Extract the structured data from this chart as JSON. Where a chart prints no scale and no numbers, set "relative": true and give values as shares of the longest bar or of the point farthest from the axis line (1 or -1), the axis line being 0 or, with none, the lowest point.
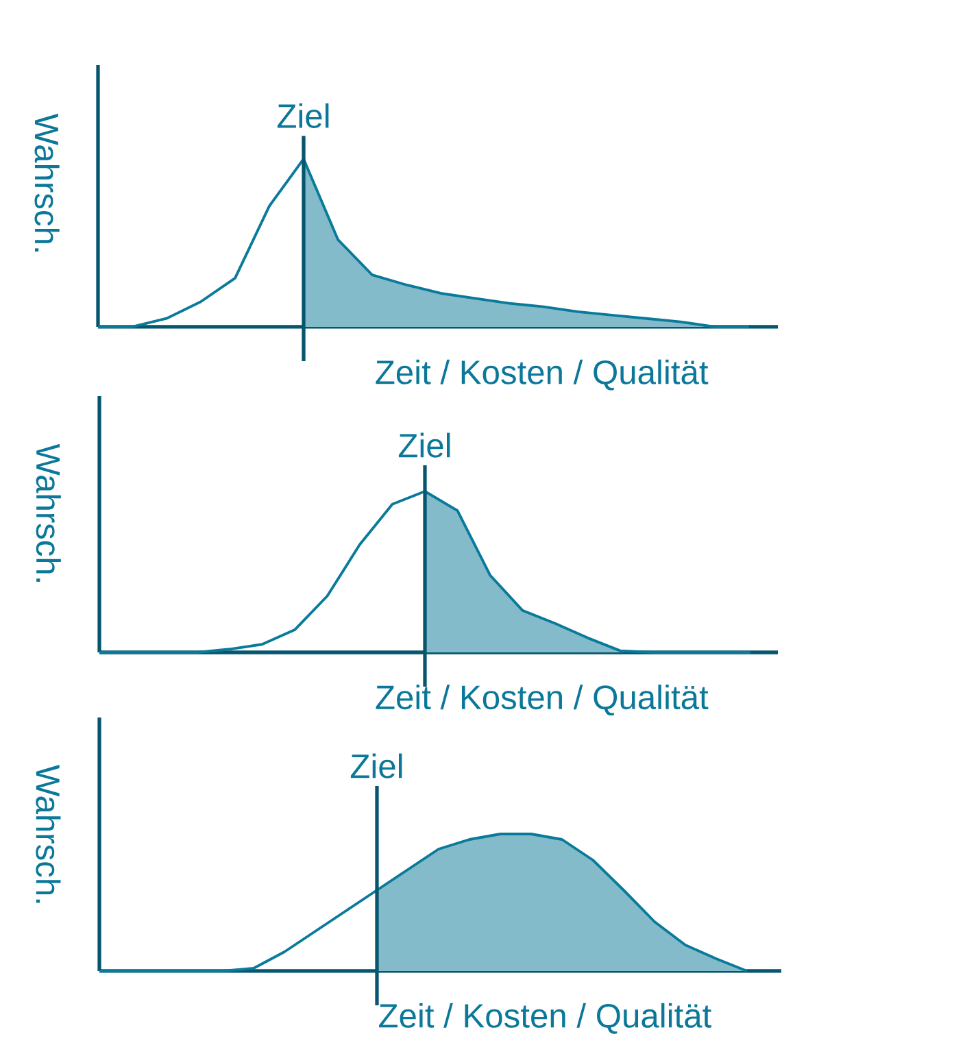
{
  "chart_data": [
    {
      "type": "area",
      "relative": true,
      "xlabel": "Zeit / Kosten / Qualität",
      "ylabel": "Wahrsch.",
      "annotations": [
        "Ziel"
      ],
      "categories": [
        null,
        null,
        null,
        null,
        null,
        null,
        null,
        null,
        null,
        null,
        null,
        null,
        null,
        null,
        null,
        null,
        null,
        null,
        null,
        null
      ],
      "series": [
        {
          "color": "#84bbcb",
          "values": [
            null,
            null,
            null,
            null,
            null,
            null,
            1.0,
            0.52,
            0.31,
            0.25,
            0.2,
            0.17,
            0.14,
            0.12,
            0.09,
            0.07,
            0.05,
            0.03,
            0,
            0
          ]
        },
        {
          "type": "line",
          "color": "#0a7a9a",
          "values": [
            0,
            0,
            0.05,
            0.15,
            0.29,
            0.72,
            1.0,
            0.52,
            0.31,
            0.25,
            0.2,
            0.17,
            0.14,
            0.12,
            0.09,
            0.07,
            0.05,
            0.03,
            0,
            0
          ]
        }
      ]
    },
    {
      "type": "area",
      "relative": true,
      "xlabel": "Zeit / Kosten / Qualität",
      "ylabel": "Wahrsch.",
      "annotations": [
        "Ziel"
      ],
      "categories": [
        null,
        null,
        null,
        null,
        null,
        null,
        null,
        null,
        null,
        null,
        null,
        null,
        null,
        null,
        null,
        null,
        null,
        null,
        null,
        null,
        null
      ],
      "series": [
        {
          "color": "#84bbcb",
          "values": [
            null,
            null,
            null,
            null,
            null,
            null,
            null,
            null,
            null,
            null,
            1.0,
            0.88,
            0.48,
            0.26,
            0.18,
            0.09,
            0.01,
            0,
            0,
            0,
            0
          ]
        },
        {
          "type": "line",
          "color": "#0a7a9a",
          "values": [
            0,
            0,
            0,
            0,
            0.02,
            0.05,
            0.14,
            0.35,
            0.67,
            0.92,
            1.0,
            0.88,
            0.48,
            0.26,
            0.18,
            0.09,
            0.01,
            0,
            0,
            0,
            0
          ]
        }
      ]
    },
    {
      "type": "area",
      "relative": true,
      "xlabel": "Zeit / Kosten / Qualität",
      "ylabel": "Wahrsch.",
      "annotations": [
        "Ziel"
      ],
      "categories": [
        null,
        null,
        null,
        null,
        null,
        null,
        null,
        null,
        null,
        null,
        null,
        null,
        null,
        null,
        null,
        null,
        null,
        null,
        null,
        null,
        null,
        null
      ],
      "series": [
        {
          "color": "#84bbcb",
          "values": [
            null,
            null,
            null,
            null,
            null,
            null,
            null,
            null,
            null,
            0.59,
            0.74,
            0.89,
            0.96,
            1.0,
            1.0,
            0.96,
            0.81,
            0.59,
            0.36,
            0.19,
            0.09,
            0
          ]
        },
        {
          "type": "line",
          "color": "#0a7a9a",
          "values": [
            0,
            0,
            0,
            0,
            0,
            0.02,
            0.14,
            0.29,
            0.44,
            0.59,
            0.74,
            0.89,
            0.96,
            1.0,
            1.0,
            0.96,
            0.81,
            0.59,
            0.36,
            0.19,
            0.09,
            0
          ]
        }
      ]
    }
  ]
}
